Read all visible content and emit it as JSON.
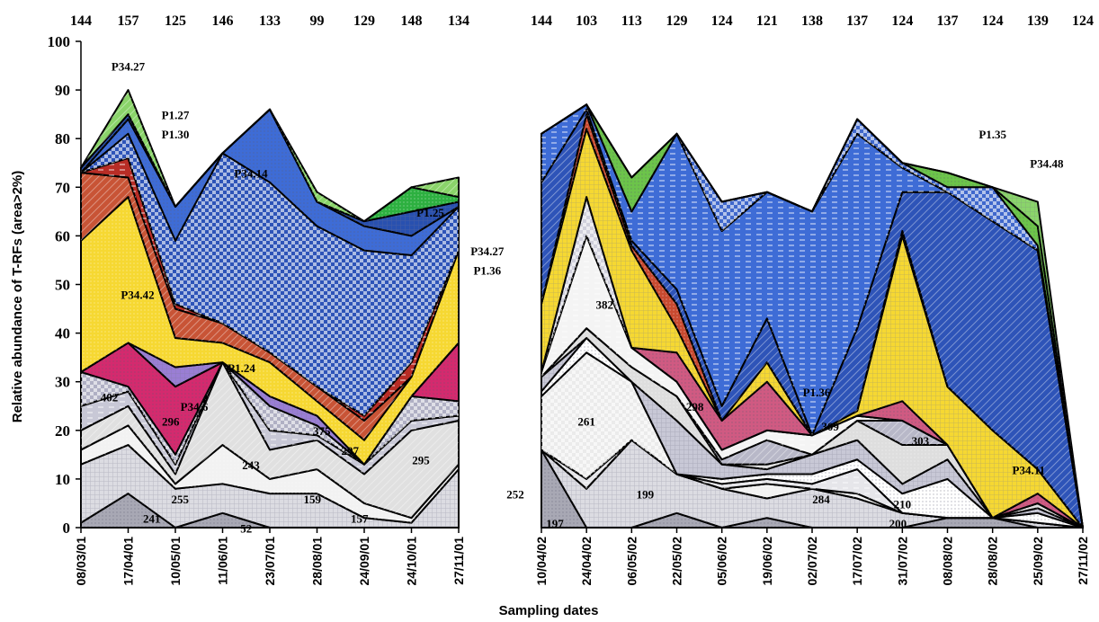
{
  "chart_data": [
    {
      "type": "area",
      "stacked": true,
      "xlabel": "Sampling dates",
      "ylabel": "Relative abundance of T-RFs (area>2%)",
      "ylim": [
        0,
        100
      ],
      "yticks": [
        0,
        10,
        20,
        30,
        40,
        50,
        60,
        70,
        80,
        90,
        100
      ],
      "categories": [
        "08/03/01",
        "17/04/01",
        "10/05/01",
        "11/06/01",
        "23/07/01",
        "28/08/01",
        "24/09/01",
        "24/10/01",
        "27/11/01"
      ],
      "top_labels": [
        "144",
        "157",
        "125",
        "146",
        "133",
        "99",
        "129",
        "148",
        "134"
      ],
      "series": [
        {
          "name": "241",
          "color": "#a8a8b4",
          "values": [
            1,
            7,
            0,
            3,
            0,
            0,
            0,
            0,
            0
          ]
        },
        {
          "name": "255",
          "color": "#dcdce2",
          "values": [
            12,
            10,
            8,
            6,
            7,
            7,
            2,
            1,
            12
          ]
        },
        {
          "name": "",
          "color": "#f2f2f2",
          "values": [
            3,
            4,
            1,
            8,
            3,
            5,
            3,
            1,
            1
          ]
        },
        {
          "name": "243",
          "color": "#e0e0e0",
          "values": [
            4,
            4,
            2,
            17,
            6,
            6,
            6,
            18,
            9
          ]
        },
        {
          "name": "296",
          "color": "#c8c8d6",
          "values": [
            5,
            3,
            2,
            0,
            4,
            1,
            2,
            2,
            1
          ]
        },
        {
          "name": "402",
          "color": "#b0b0c4",
          "values": [
            7,
            1,
            2,
            0,
            5,
            2,
            0,
            5,
            3
          ]
        },
        {
          "name": "P34.6",
          "color": "#d42a6e",
          "values": [
            0,
            9,
            14,
            0,
            0,
            0,
            0,
            0,
            12
          ]
        },
        {
          "name": "P1.24",
          "color": "#9a7ed4",
          "values": [
            0,
            0,
            4,
            0,
            2,
            2,
            0,
            0,
            0
          ]
        },
        {
          "name": "P34.42",
          "color": "#f6d832",
          "values": [
            27,
            30,
            6,
            4,
            7,
            3,
            5,
            4,
            19
          ]
        },
        {
          "name": "",
          "color": "#c85436",
          "values": [
            14,
            4,
            6,
            4,
            2,
            3,
            4,
            0,
            0
          ]
        },
        {
          "name": "",
          "color": "#b82d26",
          "values": [
            0,
            4,
            1,
            0,
            0,
            0,
            1,
            3,
            0
          ]
        },
        {
          "name": "",
          "color": "#2e54b8",
          "values": [
            0,
            5,
            13,
            35,
            35,
            33,
            34,
            22,
            9
          ]
        },
        {
          "name": "P34.14",
          "color": "#3e6cd6",
          "values": [
            0,
            3,
            7,
            0,
            15,
            5,
            5,
            4,
            0
          ]
        },
        {
          "name": "P34.27",
          "color": "#2850b0",
          "values": [
            1,
            1,
            0,
            0,
            0,
            0,
            1,
            5,
            1
          ]
        },
        {
          "name": "P1.25",
          "color": "#2db040",
          "values": [
            0,
            0,
            0,
            0,
            0,
            0,
            0,
            5,
            1
          ]
        },
        {
          "name": "P1.27 P1.30",
          "color": "#8ad46a",
          "values": [
            0,
            5,
            0,
            0,
            0,
            2,
            0,
            0,
            4
          ]
        }
      ]
    },
    {
      "type": "area",
      "stacked": true,
      "xlabel": "Sampling dates",
      "ylim": [
        0,
        100
      ],
      "categories": [
        "10/04/02",
        "24/04/02",
        "06/05/02",
        "22/05/02",
        "05/06/02",
        "19/06/02",
        "02/07/02",
        "17/07/02",
        "31/07/02",
        "08/08/02",
        "28/08/02",
        "25/09/02",
        "27/11/02"
      ],
      "top_labels": [
        "144",
        "103",
        "113",
        "129",
        "124",
        "121",
        "138",
        "137",
        "124",
        "137",
        "124",
        "139",
        "124"
      ],
      "series": [
        {
          "name": "197",
          "color": "#a8a8b4",
          "values": [
            16,
            0,
            0,
            3,
            0,
            2,
            0,
            0,
            0,
            2,
            2,
            0,
            0
          ]
        },
        {
          "name": "199",
          "color": "#dcdce2",
          "values": [
            0,
            8,
            18,
            8,
            8,
            4,
            8,
            6,
            3,
            0,
            0,
            1,
            0
          ]
        },
        {
          "name": "200",
          "color": "#f2f2f2",
          "values": [
            0,
            0,
            0,
            0,
            0,
            3,
            0,
            1,
            0,
            0,
            0,
            0,
            0
          ]
        },
        {
          "name": "210",
          "color": "#f8f8f8",
          "values": [
            0,
            0,
            0,
            0,
            0,
            0,
            0,
            0,
            0,
            0,
            0,
            0,
            0
          ]
        },
        {
          "name": "284",
          "color": "#e6e6ea",
          "values": [
            0,
            2,
            0,
            0,
            1,
            1,
            1,
            5,
            0,
            0,
            0,
            0,
            0
          ]
        },
        {
          "name": "261",
          "color": "#ebebeb",
          "values": [
            11,
            26,
            12,
            0,
            0,
            0,
            0,
            0,
            0,
            0,
            0,
            0,
            0
          ]
        },
        {
          "name": "",
          "color": "#ffffff",
          "values": [
            1,
            3,
            0,
            0,
            1,
            1,
            2,
            2,
            4,
            8,
            0,
            2,
            0
          ]
        },
        {
          "name": "298",
          "color": "#c8c8d6",
          "values": [
            3,
            0,
            0,
            11,
            3,
            1,
            4,
            4,
            2,
            4,
            0,
            1,
            0
          ]
        },
        {
          "name": "303",
          "color": "#dedede",
          "values": [
            0,
            2,
            3,
            5,
            0,
            1,
            0,
            4,
            8,
            3,
            0,
            1,
            0
          ]
        },
        {
          "name": "309",
          "color": "#b8b8c8",
          "values": [
            0,
            0,
            0,
            0,
            1,
            5,
            0,
            0,
            5,
            0,
            0,
            0,
            0
          ]
        },
        {
          "name": "382",
          "color": "#f4f4f4",
          "values": [
            1,
            19,
            4,
            3,
            2,
            2,
            4,
            1,
            0,
            0,
            0,
            0,
            0
          ]
        },
        {
          "name": "",
          "color": "#d0d0dc",
          "values": [
            0,
            8,
            0,
            0,
            0,
            0,
            0,
            0,
            0,
            0,
            0,
            0,
            0
          ]
        },
        {
          "name": "",
          "color": "#d05a82",
          "values": [
            0,
            0,
            0,
            6,
            6,
            10,
            0,
            0,
            4,
            0,
            0,
            2,
            0
          ]
        },
        {
          "name": "P34.11",
          "color": "#f6d832",
          "values": [
            14,
            14,
            20,
            5,
            0,
            4,
            0,
            1,
            34,
            12,
            18,
            5,
            0
          ]
        },
        {
          "name": "",
          "color": "#c84a30",
          "values": [
            0,
            3,
            1,
            5,
            0,
            0,
            0,
            0,
            1,
            0,
            0,
            0,
            0
          ]
        },
        {
          "name": "P1.36",
          "color": "#2e54b8",
          "values": [
            25,
            1,
            1,
            3,
            3,
            9,
            0,
            17,
            8,
            40,
            43,
            45,
            0
          ]
        },
        {
          "name": "P34.27 P1.36",
          "color": "#3e6cd6",
          "values": [
            10,
            1,
            6,
            32,
            36,
            26,
            46,
            40,
            5,
            0,
            0,
            0,
            0
          ]
        },
        {
          "name": "",
          "color": "#4068cc",
          "values": [
            0,
            0,
            0,
            0,
            6,
            0,
            0,
            3,
            1,
            1,
            7,
            1,
            0
          ]
        },
        {
          "name": "P1.35",
          "color": "#6cc44a",
          "values": [
            0,
            0,
            7,
            0,
            0,
            0,
            0,
            0,
            0,
            3,
            0,
            4,
            0
          ]
        },
        {
          "name": "P34.48",
          "color": "#8ad46a",
          "values": [
            0,
            0,
            0,
            0,
            0,
            0,
            0,
            0,
            0,
            0,
            0,
            5,
            0
          ]
        }
      ]
    }
  ],
  "annotations": {
    "left": [
      {
        "text": "P34.27",
        "x": 1,
        "y": 94
      },
      {
        "text": "P1.27",
        "x": 2,
        "y": 84
      },
      {
        "text": "P1.30",
        "x": 2,
        "y": 80
      },
      {
        "text": "P34.14",
        "x": 3.6,
        "y": 72
      },
      {
        "text": "P1.25",
        "x": 7.4,
        "y": 64
      },
      {
        "text": "P34.42",
        "x": 1.2,
        "y": 47
      },
      {
        "text": "P1.24",
        "x": 3.4,
        "y": 32
      },
      {
        "text": "P34.6",
        "x": 2.4,
        "y": 24
      },
      {
        "text": "402",
        "x": 0.6,
        "y": 26
      },
      {
        "text": "296",
        "x": 1.9,
        "y": 21
      },
      {
        "text": "375",
        "x": 5.1,
        "y": 19
      },
      {
        "text": "297",
        "x": 5.7,
        "y": 15
      },
      {
        "text": "243",
        "x": 3.6,
        "y": 12
      },
      {
        "text": "295",
        "x": 7.2,
        "y": 13
      },
      {
        "text": "255",
        "x": 2.1,
        "y": 5
      },
      {
        "text": "159",
        "x": 4.9,
        "y": 5
      },
      {
        "text": "252",
        "x": 9.2,
        "y": 6
      },
      {
        "text": "157",
        "x": 5.9,
        "y": 1
      },
      {
        "text": "241",
        "x": 1.5,
        "y": 1
      },
      {
        "text": "52",
        "x": 3.5,
        "y": -1
      }
    ],
    "right": [
      {
        "text": "P1.35",
        "x": 10,
        "y": 80
      },
      {
        "text": "P34.48",
        "x": 11.2,
        "y": 74
      },
      {
        "text": "P34.27",
        "x": -1.2,
        "y": 56
      },
      {
        "text": "P1.36",
        "x": -1.2,
        "y": 52
      },
      {
        "text": "382",
        "x": 1.4,
        "y": 45
      },
      {
        "text": "261",
        "x": 1,
        "y": 21
      },
      {
        "text": "298",
        "x": 3.4,
        "y": 24
      },
      {
        "text": "P1.36",
        "x": 6.1,
        "y": 27
      },
      {
        "text": "309",
        "x": 6.4,
        "y": 20
      },
      {
        "text": "303",
        "x": 8.4,
        "y": 17
      },
      {
        "text": "P34.11",
        "x": 10.8,
        "y": 11
      },
      {
        "text": "199",
        "x": 2.3,
        "y": 6
      },
      {
        "text": "284",
        "x": 6.2,
        "y": 5
      },
      {
        "text": "210",
        "x": 8,
        "y": 4
      },
      {
        "text": "200",
        "x": 7.9,
        "y": 0
      },
      {
        "text": "197",
        "x": 0.3,
        "y": 0
      }
    ]
  }
}
